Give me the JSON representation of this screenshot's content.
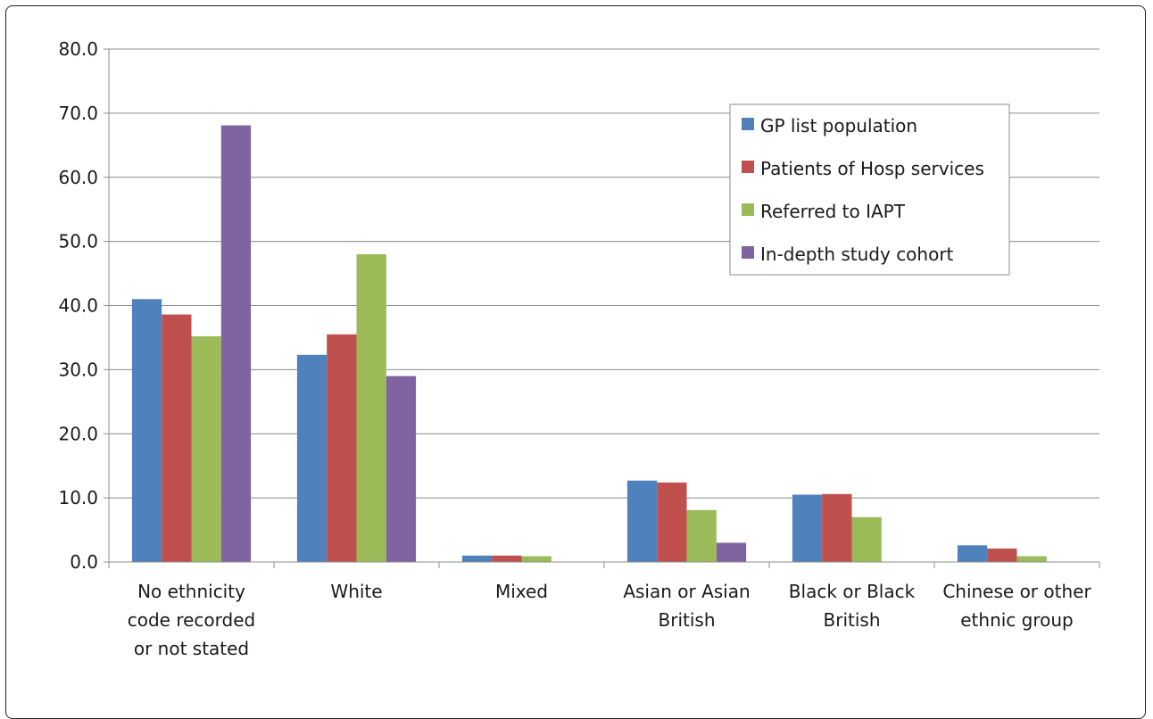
{
  "chart_data": {
    "type": "bar",
    "categories": [
      [
        "No ethnicity",
        "code recorded",
        "or not stated"
      ],
      [
        "White"
      ],
      [
        "Mixed"
      ],
      [
        "Asian or Asian",
        "British"
      ],
      [
        "Black or Black",
        "British"
      ],
      [
        "Chinese or other",
        "ethnic group"
      ]
    ],
    "series": [
      {
        "name": "GP list population",
        "color": "#4f81bd",
        "values": [
          41.0,
          32.3,
          1.0,
          12.7,
          10.5,
          2.6
        ]
      },
      {
        "name": "Patients of Hosp services",
        "color": "#c0504d",
        "values": [
          38.6,
          35.5,
          1.0,
          12.4,
          10.6,
          2.1
        ]
      },
      {
        "name": "Referred to IAPT",
        "color": "#9bbb59",
        "values": [
          35.2,
          48.0,
          0.9,
          8.1,
          7.0,
          0.9
        ]
      },
      {
        "name": "In-depth study cohort",
        "color": "#8064a2",
        "values": [
          68.1,
          29.0,
          0.0,
          3.0,
          0.0,
          0.0
        ]
      }
    ],
    "ylim": [
      0,
      80
    ],
    "yticks": [
      "0.0",
      "10.0",
      "20.0",
      "30.0",
      "40.0",
      "50.0",
      "60.0",
      "70.0",
      "80.0"
    ],
    "grid": true,
    "legend": "top-right"
  }
}
